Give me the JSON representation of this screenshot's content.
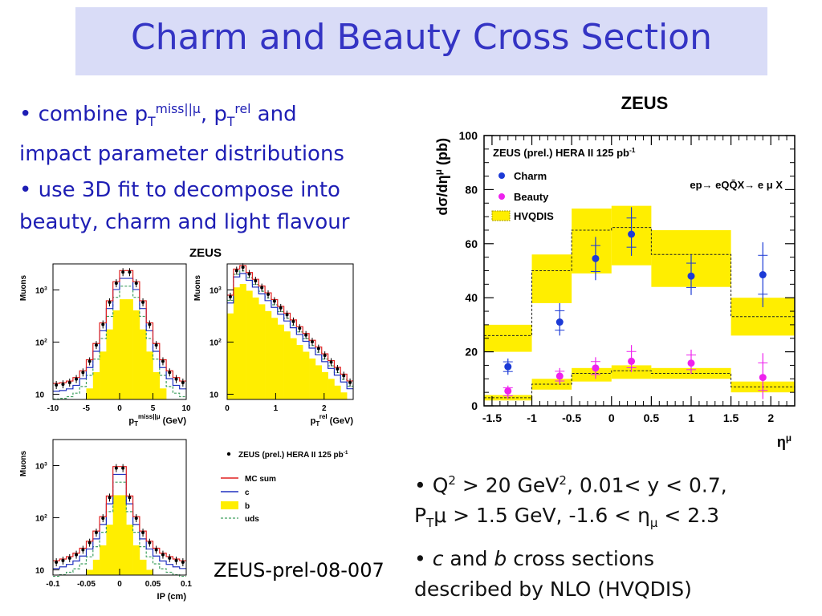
{
  "slide": {
    "title": "Charm and Beauty Cross Section",
    "bullet1_pre": "• combine p",
    "bullet1_sub1": "T",
    "bullet1_sup1": "miss||μ",
    "bullet1_mid": ", p",
    "bullet1_sub2": "T",
    "bullet1_sup2": "rel",
    "bullet1_post": " and",
    "bullet1_line2": "impact parameter distributions",
    "bullet2_line1": "• use 3D fit to decompose into",
    "bullet2_line2": "beauty, charm and light flavour",
    "bullet3_a": "• Q",
    "bullet3_sup1": "2",
    "bullet3_b": " > 20 GeV",
    "bullet3_sup2": "2",
    "bullet3_c": ", 0.01< y < 0.7,",
    "bullet3_d": "P",
    "bullet3_sub1": "T",
    "bullet3_e": "μ > 1.5 GeV, -1.6 < η",
    "bullet3_sub2": "μ",
    "bullet3_f": " < 2.3",
    "bullet4_a": "• ",
    "bullet4_c": "c",
    "bullet4_mid": " and ",
    "bullet4_b": "b",
    "bullet4_post": " cross sections",
    "bullet4_line2": "described by NLO (HVQDIS)",
    "reference": "ZEUS-prel-08-007"
  },
  "colors": {
    "title_bg": "#d9dcf7",
    "title_text": "#3434c4",
    "bullet_text": "#1e1eb4",
    "charm": "#1c3ad6",
    "beauty": "#ee22ee",
    "band": "#ffee00",
    "mc_sum": "#e02020",
    "c_line": "#2030c0",
    "uds": "#40a060"
  },
  "chart_data": [
    {
      "type": "scatter",
      "header": "ZEUS",
      "title": "ZEUS (prel.) HERA II 125 pb",
      "title_sup": "-1",
      "process": "ep→ eQQ̄X→ e μ X",
      "xlabel": "η",
      "xlabel_sup": "μ",
      "ylabel": "dσ/dη",
      "ylabel_sup": "μ",
      "ylabel_unit": "(pb)",
      "xlim": [
        -1.6,
        2.3
      ],
      "ylim": [
        0,
        100
      ],
      "xticks": [
        "-1.5",
        "-1",
        "-0.5",
        "0",
        "0.5",
        "1",
        "1.5",
        "2"
      ],
      "yticks": [
        "0",
        "20",
        "40",
        "60",
        "80",
        "100"
      ],
      "legend": [
        "Charm",
        "Beauty",
        "HVQDIS"
      ],
      "bins": [
        [
          -1.6,
          -1.0
        ],
        [
          -1.0,
          -0.5
        ],
        [
          -0.5,
          0.0
        ],
        [
          0.0,
          0.5
        ],
        [
          0.5,
          1.5
        ],
        [
          1.5,
          2.3
        ]
      ],
      "charm": {
        "x": [
          -1.3,
          -0.65,
          -0.2,
          0.25,
          1.0,
          1.9
        ],
        "y": [
          14.5,
          31,
          54.5,
          63.5,
          48,
          48.5
        ],
        "err_low": [
          3,
          5,
          8,
          8,
          7,
          12
        ],
        "err_high": [
          3,
          7,
          8,
          10,
          8,
          12
        ]
      },
      "beauty": {
        "x": [
          -1.3,
          -0.65,
          -0.2,
          0.25,
          1.0,
          1.9
        ],
        "y": [
          5.5,
          11,
          14,
          16.5,
          15.8,
          10.5
        ],
        "err_low": [
          3,
          3,
          4,
          4,
          4,
          8
        ],
        "err_high": [
          2,
          3,
          4,
          6,
          5,
          9
        ]
      },
      "hvqdis_charm": {
        "central": [
          26,
          50,
          65,
          66,
          56,
          33
        ],
        "low": [
          20,
          38,
          49,
          52,
          44,
          26
        ],
        "high": [
          30,
          56,
          73,
          74,
          65,
          40
        ]
      },
      "hvqdis_beauty": {
        "central": [
          3,
          8,
          12,
          13,
          12,
          7
        ],
        "low": [
          2,
          6,
          9,
          10,
          10,
          5
        ],
        "high": [
          4,
          10,
          14,
          15,
          14,
          9
        ]
      }
    },
    {
      "type": "histogram",
      "header": "ZEUS",
      "panels": [
        {
          "xlabel": "p",
          "xlabel_sub": "T",
          "xlabel_sup": "miss||μ",
          "xlabel_unit": "(GeV)",
          "ylabel": "Muons",
          "xticks": [
            "-10",
            "-5",
            "0",
            "5",
            "10"
          ],
          "yticks": [
            "10",
            "10",
            "10"
          ],
          "ytick_sup": [
            "",
            "2",
            "3"
          ]
        },
        {
          "xlabel": "p",
          "xlabel_sub": "T",
          "xlabel_sup": "rel",
          "xlabel_unit": "(GeV)",
          "ylabel": "Muons",
          "xticks": [
            "0",
            "1",
            "2"
          ],
          "yticks": [
            "10",
            "10",
            "10"
          ],
          "ytick_sup": [
            "",
            "2",
            "3"
          ]
        },
        {
          "xlabel": "IP (cm)",
          "ylabel": "Muons",
          "xticks": [
            "-0.1",
            "-0.05",
            "0",
            "0.05",
            "0.1"
          ],
          "yticks": [
            "10",
            "10",
            "10"
          ],
          "ytick_sup": [
            "",
            "2",
            "3"
          ]
        }
      ],
      "legend": [
        "ZEUS (prel.) HERA II 125 pb",
        "MC sum",
        "c",
        "b",
        "uds"
      ],
      "legend_sup": "-1"
    }
  ]
}
